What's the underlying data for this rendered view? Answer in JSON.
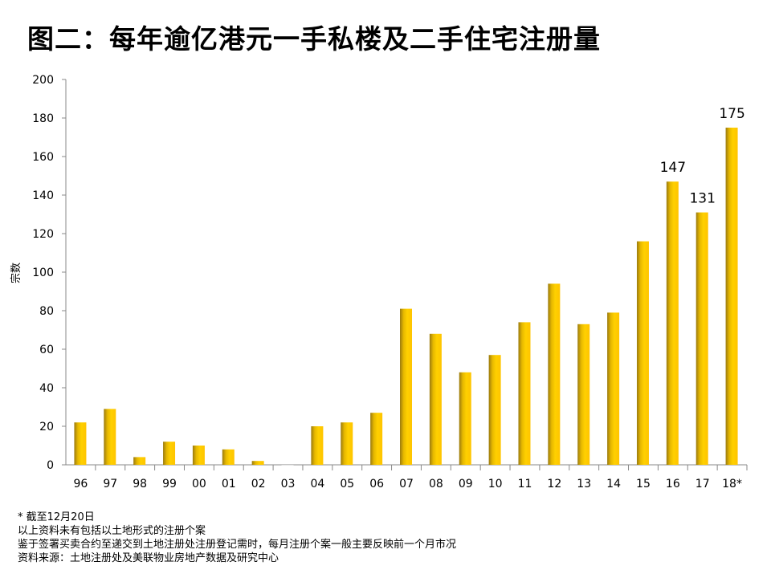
{
  "title": "图二：每年逾亿港元一手私楼及二手住宅注册量",
  "chart_data": {
    "type": "bar",
    "title": "图二：每年逾亿港元一手私楼及二手住宅注册量",
    "xlabel": "",
    "ylabel": "宗数",
    "ylim": [
      0,
      200
    ],
    "yticks": [
      0,
      20,
      40,
      60,
      80,
      100,
      120,
      140,
      160,
      180,
      200
    ],
    "grid": false,
    "categories": [
      "96",
      "97",
      "98",
      "99",
      "00",
      "01",
      "02",
      "03",
      "04",
      "05",
      "06",
      "07",
      "08",
      "09",
      "10",
      "11",
      "12",
      "13",
      "14",
      "15",
      "16",
      "17",
      "18*"
    ],
    "values": [
      22,
      29,
      4,
      12,
      10,
      8,
      2,
      0,
      20,
      22,
      27,
      81,
      68,
      48,
      57,
      74,
      94,
      73,
      79,
      116,
      147,
      131,
      175
    ],
    "data_labels": {
      "16": "147",
      "17": "131",
      "18*": "175"
    },
    "bar_color": "#FFC800"
  },
  "notes": [
    "* 截至12月20日",
    "以上资料未有包括以土地形式的注册个案",
    "鉴于签署买卖合约至递交到土地注册处注册登记需时，每月注册个案一般主要反映前一个月市况",
    "资料来源：土地注册处及美联物业房地产数据及研究中心"
  ]
}
